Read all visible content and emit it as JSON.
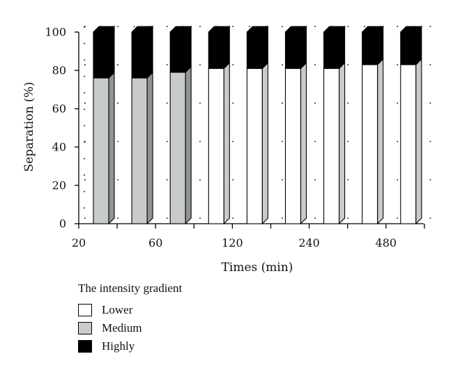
{
  "chart_data": {
    "type": "bar",
    "stacked": true,
    "style": "3d",
    "x_tick_labels": [
      "20",
      "60",
      "120",
      "240",
      "480"
    ],
    "bar_count": 9,
    "series": [
      {
        "name": "Lower",
        "color": "#ffffff",
        "values": [
          0,
          0,
          0,
          81,
          81,
          81,
          81,
          83,
          83
        ]
      },
      {
        "name": "Medium",
        "color": "#c8cbca",
        "values": [
          76,
          76,
          79,
          0,
          0,
          0,
          0,
          0,
          0
        ]
      },
      {
        "name": "Highly",
        "color": "#000000",
        "values": [
          24,
          24,
          21,
          19,
          19,
          19,
          19,
          17,
          17
        ]
      }
    ],
    "xlabel": "Times (min)",
    "ylabel": "Separation (%)",
    "ylim": [
      0,
      100
    ],
    "yticks": [
      0,
      20,
      40,
      60,
      80,
      100
    ],
    "grid": "dotted",
    "legend_title": "The intensity gradient",
    "legend_position": "bottom-left"
  }
}
